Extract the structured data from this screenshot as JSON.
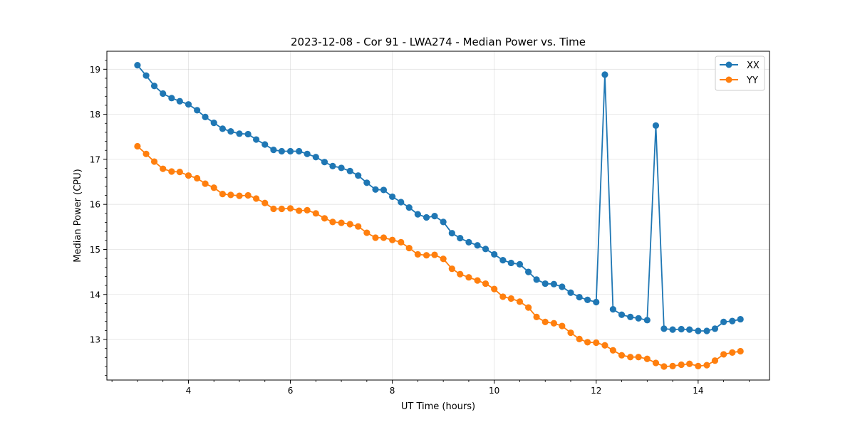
{
  "chart_data": {
    "type": "line",
    "title": "2023-12-08 - Cor 91 - LWA274 - Median Power vs. Time",
    "xlabel": "UT Time (hours)",
    "ylabel": "Median Power (CPU)",
    "xlim": [
      2.4,
      15.4
    ],
    "ylim": [
      12.1,
      19.4
    ],
    "xticks": [
      4,
      6,
      8,
      10,
      12,
      14
    ],
    "yticks": [
      13,
      14,
      15,
      16,
      17,
      18,
      19
    ],
    "grid": true,
    "legend_position": "top-right",
    "x": [
      3.0,
      3.17,
      3.33,
      3.5,
      3.67,
      3.83,
      4.0,
      4.17,
      4.33,
      4.5,
      4.67,
      4.83,
      5.0,
      5.17,
      5.33,
      5.5,
      5.67,
      5.83,
      6.0,
      6.17,
      6.33,
      6.5,
      6.67,
      6.83,
      7.0,
      7.17,
      7.33,
      7.5,
      7.67,
      7.83,
      8.0,
      8.17,
      8.33,
      8.5,
      8.67,
      8.83,
      9.0,
      9.17,
      9.33,
      9.5,
      9.67,
      9.83,
      10.0,
      10.17,
      10.33,
      10.5,
      10.67,
      10.83,
      11.0,
      11.17,
      11.33,
      11.5,
      11.67,
      11.83,
      12.0,
      12.17,
      12.33,
      12.5,
      12.67,
      12.83,
      13.0,
      13.17,
      13.33,
      13.5,
      13.67,
      13.83,
      14.0,
      14.17,
      14.33,
      14.5,
      14.67,
      14.83
    ],
    "series": [
      {
        "name": "XX",
        "color": "#1f77b4",
        "values": [
          19.09,
          18.86,
          18.63,
          18.46,
          18.36,
          18.29,
          18.22,
          18.09,
          17.94,
          17.81,
          17.68,
          17.62,
          17.57,
          17.56,
          17.44,
          17.33,
          17.21,
          17.18,
          17.18,
          17.18,
          17.12,
          17.05,
          16.94,
          16.85,
          16.81,
          16.74,
          16.64,
          16.48,
          16.33,
          16.32,
          16.17,
          16.05,
          15.93,
          15.78,
          15.71,
          15.74,
          15.61,
          15.36,
          15.25,
          15.16,
          15.09,
          15.01,
          14.89,
          14.76,
          14.7,
          14.67,
          14.5,
          14.33,
          14.24,
          14.23,
          14.17,
          14.04,
          13.94,
          13.88,
          13.83,
          18.88,
          13.67,
          13.55,
          13.5,
          13.47,
          13.43,
          17.75,
          13.24,
          13.22,
          13.23,
          13.22,
          13.19,
          13.19,
          13.24,
          13.39,
          13.41,
          13.45
        ]
      },
      {
        "name": "YY",
        "color": "#ff7f0e",
        "values": [
          17.29,
          17.12,
          16.95,
          16.79,
          16.73,
          16.72,
          16.64,
          16.58,
          16.46,
          16.37,
          16.23,
          16.21,
          16.19,
          16.2,
          16.13,
          16.03,
          15.9,
          15.9,
          15.91,
          15.86,
          15.87,
          15.8,
          15.69,
          15.61,
          15.59,
          15.56,
          15.51,
          15.37,
          15.26,
          15.26,
          15.21,
          15.16,
          15.03,
          14.89,
          14.87,
          14.88,
          14.79,
          14.57,
          14.45,
          14.38,
          14.31,
          14.24,
          14.12,
          13.95,
          13.91,
          13.84,
          13.71,
          13.5,
          13.39,
          13.36,
          13.3,
          13.15,
          13.01,
          12.94,
          12.93,
          12.87,
          12.76,
          12.65,
          12.61,
          12.61,
          12.57,
          12.48,
          12.4,
          12.41,
          12.44,
          12.46,
          12.41,
          12.43,
          12.53,
          12.67,
          12.71,
          12.74
        ]
      }
    ]
  }
}
